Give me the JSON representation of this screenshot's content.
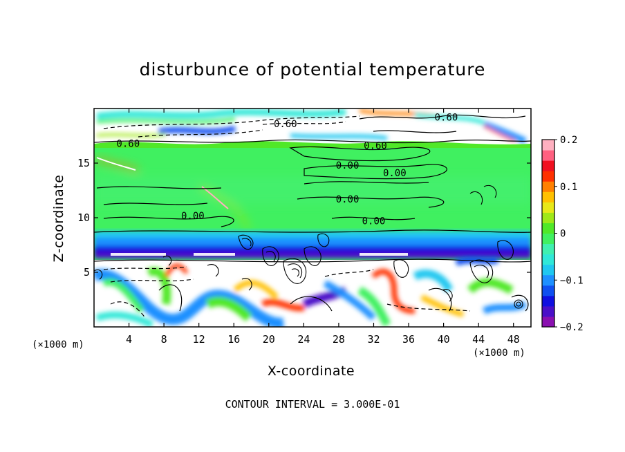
{
  "chart_data": {
    "type": "heatmap",
    "title": "disturbunce of potential temperature",
    "xlabel": "X-coordinate",
    "ylabel": "Z-coordinate",
    "x_unit": "(×1000 m)",
    "y_unit": "(×1000 m)",
    "footer": "CONTOUR INTERVAL = 3.000E-01",
    "xlim": [
      0,
      50
    ],
    "ylim": [
      0,
      20
    ],
    "x_ticks": [
      4,
      8,
      12,
      16,
      20,
      24,
      28,
      32,
      36,
      40,
      44,
      48
    ],
    "y_ticks": [
      5,
      10,
      15
    ],
    "colorbar": {
      "range": [
        -0.2,
        0.2
      ],
      "ticks": [
        0.2,
        0.1,
        0,
        -0.1,
        -0.2
      ],
      "tick_labels": [
        "0.2",
        "0.1",
        "0",
        "−0.1",
        "−0.2"
      ],
      "colors": [
        "#8a10b0",
        "#4a10c8",
        "#1010e0",
        "#1050f0",
        "#1e90ff",
        "#20c8f0",
        "#30e8d8",
        "#40f0b0",
        "#40f060",
        "#50e828",
        "#a0e818",
        "#e8e818",
        "#ffc000",
        "#ff8000",
        "#ff3000",
        "#f01020",
        "#ff6080",
        "#ffb0c0"
      ]
    },
    "contour_labels": [
      {
        "x": 21.9,
        "z": 18.6,
        "text": "0.60"
      },
      {
        "x": 40.3,
        "z": 19.2,
        "text": "0.60"
      },
      {
        "x": 3.9,
        "z": 16.8,
        "text": "0.60"
      },
      {
        "x": 32.2,
        "z": 16.6,
        "text": "0.60"
      },
      {
        "x": 29.0,
        "z": 14.8,
        "text": "0.00"
      },
      {
        "x": 34.4,
        "z": 14.1,
        "text": "0.00"
      },
      {
        "x": 29.0,
        "z": 11.7,
        "text": "0.00"
      },
      {
        "x": 11.3,
        "z": 10.2,
        "text": "0.00"
      },
      {
        "x": 32.0,
        "z": 9.7,
        "text": "0.00"
      }
    ],
    "contour_interval": 0.3
  }
}
